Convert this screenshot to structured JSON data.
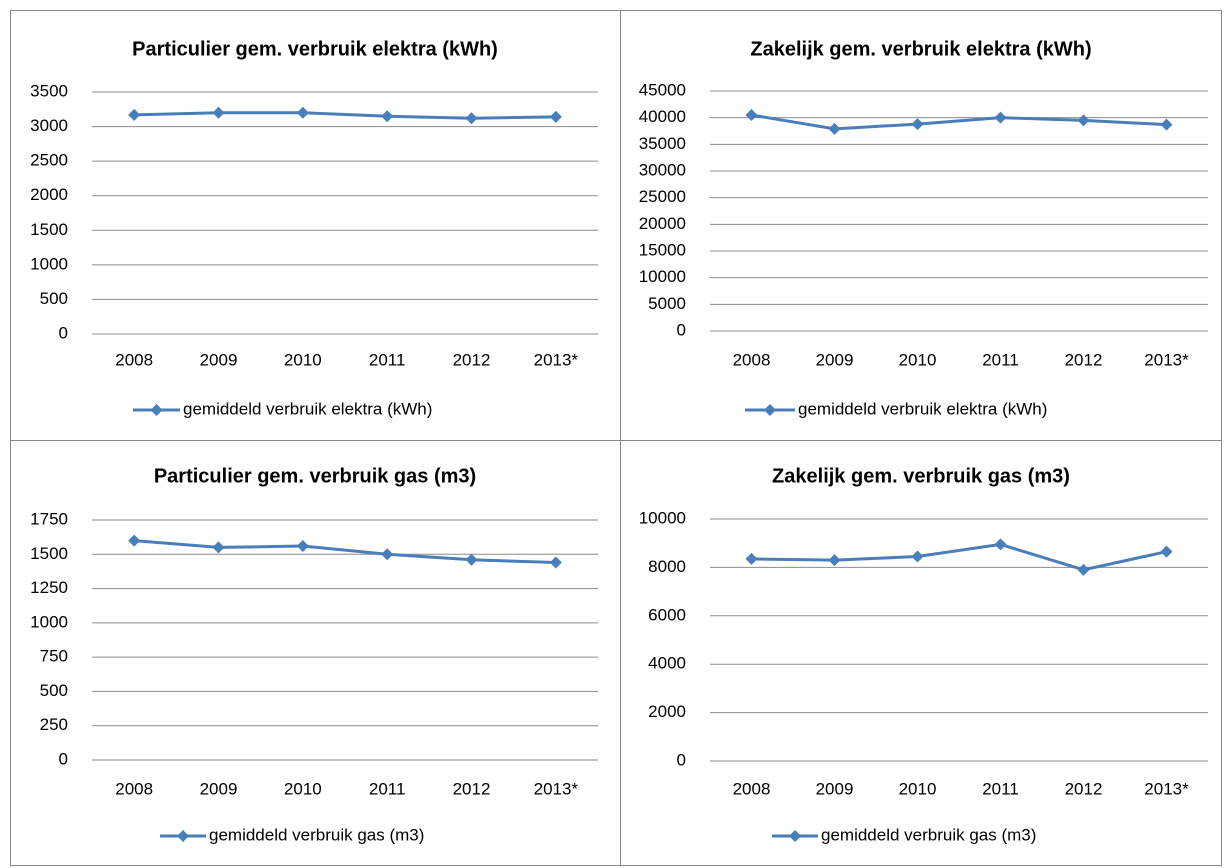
{
  "chart_data": [
    {
      "type": "line",
      "title": "Particulier gem. verbruik elektra (kWh)",
      "categories": [
        "2008",
        "2009",
        "2010",
        "2011",
        "2012",
        "2013*"
      ],
      "series": [
        {
          "name": "gemiddeld verbruik elektra (kWh)",
          "color": "#4a7ebb",
          "values": [
            3170,
            3200,
            3200,
            3150,
            3120,
            3140
          ]
        }
      ],
      "ylim": [
        0,
        3500
      ],
      "yticks": [
        0,
        500,
        1000,
        1500,
        2000,
        2500,
        3000,
        3500
      ],
      "grid": true,
      "legend": "bottom"
    },
    {
      "type": "line",
      "title": "Zakelijk gem. verbruik elektra (kWh)",
      "categories": [
        "2008",
        "2009",
        "2010",
        "2011",
        "2012",
        "2013*"
      ],
      "series": [
        {
          "name": "gemiddeld verbruik elektra (kWh)",
          "color": "#4a7ebb",
          "values": [
            40500,
            37900,
            38800,
            40000,
            39500,
            38700
          ]
        }
      ],
      "ylim": [
        0,
        45000
      ],
      "yticks": [
        0,
        5000,
        10000,
        15000,
        20000,
        25000,
        30000,
        35000,
        40000,
        45000
      ],
      "grid": true,
      "legend": "bottom"
    },
    {
      "type": "line",
      "title": "Particulier gem. verbruik gas (m3)",
      "categories": [
        "2008",
        "2009",
        "2010",
        "2011",
        "2012",
        "2013*"
      ],
      "series": [
        {
          "name": "gemiddeld verbruik gas (m3)",
          "color": "#4a7ebb",
          "values": [
            1600,
            1550,
            1560,
            1500,
            1460,
            1440
          ]
        }
      ],
      "ylim": [
        0,
        1750
      ],
      "yticks": [
        0,
        250,
        500,
        750,
        1000,
        1250,
        1500,
        1750
      ],
      "grid": true,
      "legend": "bottom"
    },
    {
      "type": "line",
      "title": "Zakelijk gem. verbruik gas (m3)",
      "categories": [
        "2008",
        "2009",
        "2010",
        "2011",
        "2012",
        "2013*"
      ],
      "series": [
        {
          "name": "gemiddeld verbruik gas (m3)",
          "color": "#4a7ebb",
          "values": [
            8350,
            8300,
            8450,
            8950,
            7900,
            8650
          ]
        }
      ],
      "ylim": [
        0,
        10000
      ],
      "yticks": [
        0,
        2000,
        4000,
        6000,
        8000,
        10000
      ],
      "grid": true,
      "legend": "bottom"
    }
  ]
}
